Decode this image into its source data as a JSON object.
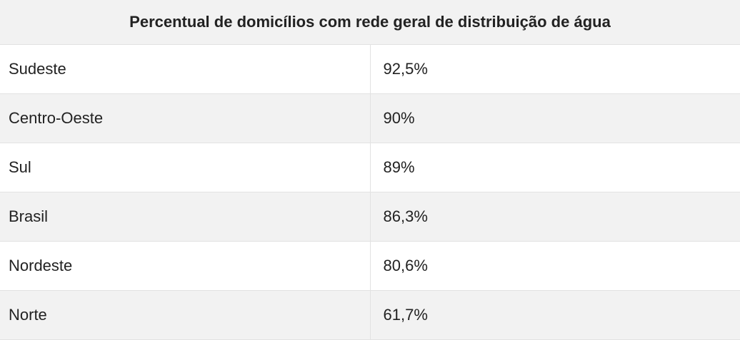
{
  "table": {
    "title": "Percentual de domicílios com rede geral de distribuição de água",
    "rows": [
      [
        "Sudeste",
        "92,5%"
      ],
      [
        "Centro-Oeste",
        "90%"
      ],
      [
        "Sul",
        "89%"
      ],
      [
        "Brasil",
        "86,3%"
      ],
      [
        "Nordeste",
        "80,6%"
      ],
      [
        "Norte",
        "61,7%"
      ]
    ]
  }
}
